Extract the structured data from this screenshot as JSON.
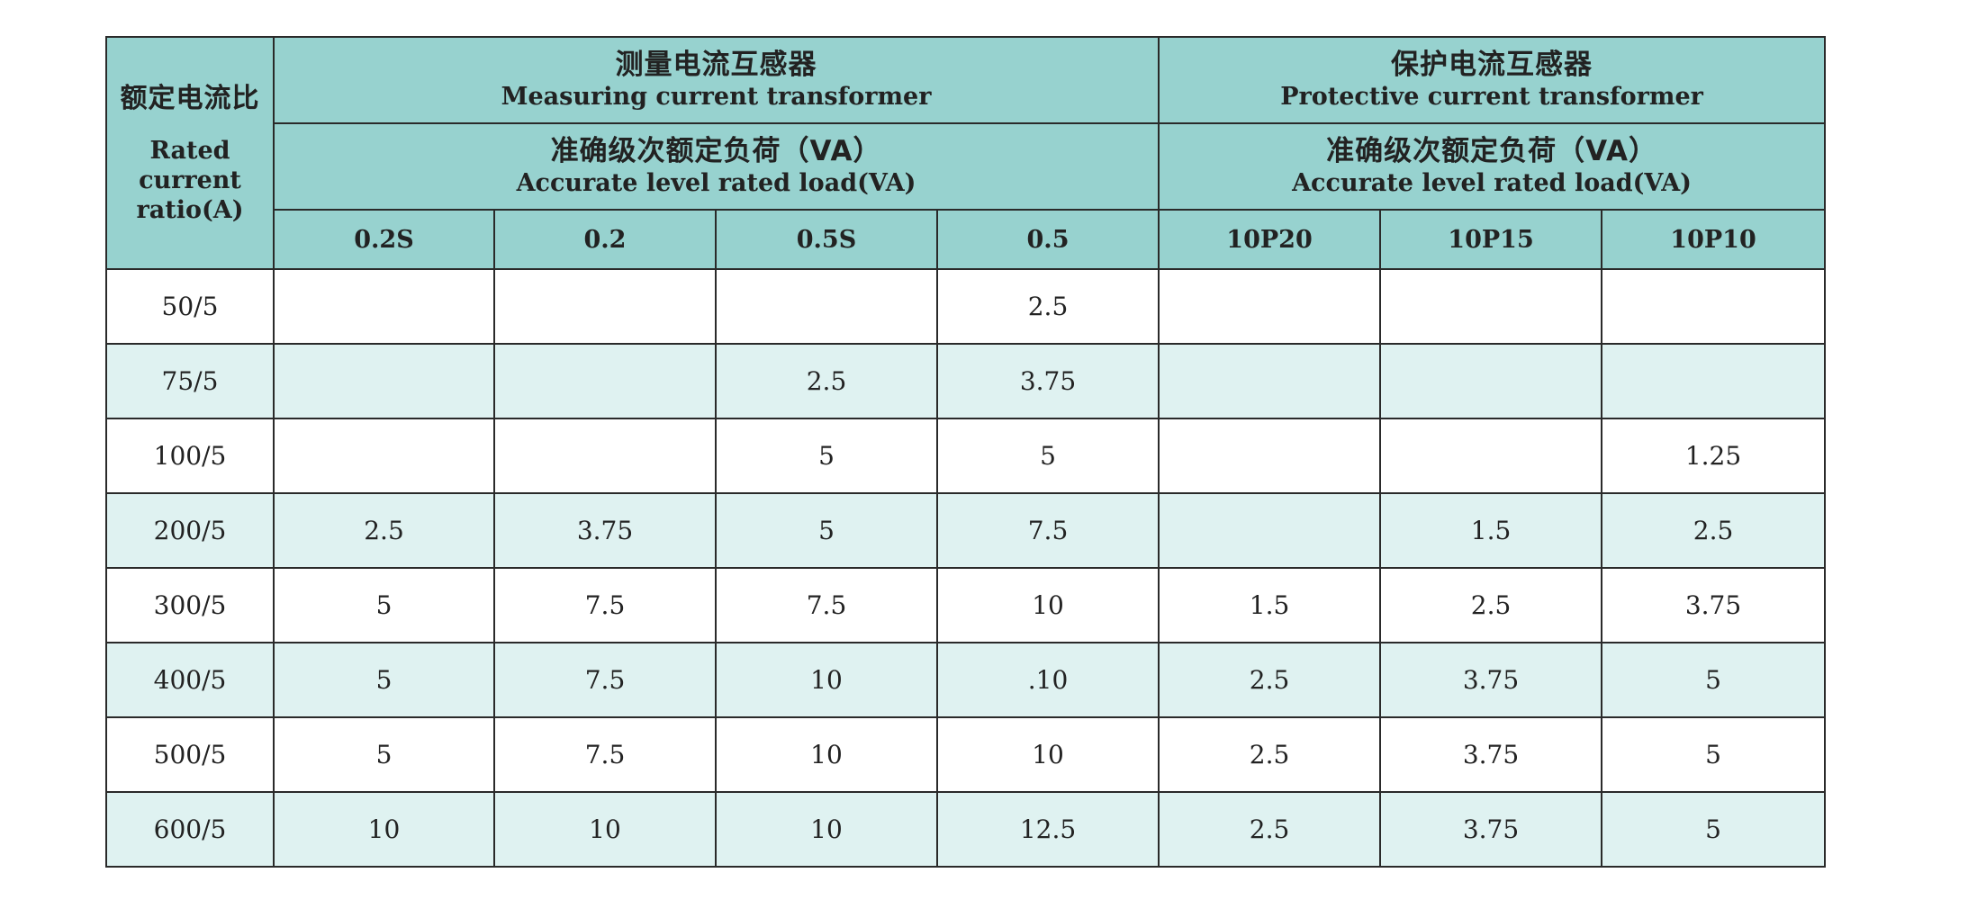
{
  "table": {
    "corner": {
      "zh": "额定电流比",
      "en_lines": [
        "Rated",
        "current",
        "ratio(A)"
      ]
    },
    "groups": [
      {
        "zh": "测量电流互感器",
        "en": "Measuring current transformer",
        "sub_zh": "准确级次额定负荷（VA）",
        "sub_en": "Accurate level rated load(VA)"
      },
      {
        "zh": "保护电流互感器",
        "en": "Protective current transformer",
        "sub_zh": "准确级次额定负荷（VA）",
        "sub_en": "Accurate level rated load(VA)"
      }
    ],
    "classes": [
      "0.2S",
      "0.2",
      "0.5S",
      "0.5",
      "10P20",
      "10P15",
      "10P10"
    ],
    "rows": [
      {
        "ratio": "50/5",
        "cells": [
          "",
          "",
          "",
          "2.5",
          "",
          "",
          ""
        ]
      },
      {
        "ratio": "75/5",
        "cells": [
          "",
          "",
          "2.5",
          "3.75",
          "",
          "",
          ""
        ]
      },
      {
        "ratio": "100/5",
        "cells": [
          "",
          "",
          "5",
          "5",
          "",
          "",
          "1.25"
        ]
      },
      {
        "ratio": "200/5",
        "cells": [
          "2.5",
          "3.75",
          "5",
          "7.5",
          "",
          "1.5",
          "2.5"
        ]
      },
      {
        "ratio": "300/5",
        "cells": [
          "5",
          "7.5",
          "7.5",
          "10",
          "1.5",
          "2.5",
          "3.75"
        ]
      },
      {
        "ratio": "400/5",
        "cells": [
          "5",
          "7.5",
          "10",
          ".10",
          "2.5",
          "3.75",
          "5"
        ]
      },
      {
        "ratio": "500/5",
        "cells": [
          "5",
          "7.5",
          "10",
          "10",
          "2.5",
          "3.75",
          "5"
        ]
      },
      {
        "ratio": "600/5",
        "cells": [
          "10",
          "10",
          "10",
          "12.5",
          "2.5",
          "3.75",
          "5"
        ]
      }
    ]
  },
  "colors": {
    "header": "#97d2cf",
    "row_alt": "#dff2f1",
    "row": "#ffffff",
    "border": "#2a2a2a"
  }
}
